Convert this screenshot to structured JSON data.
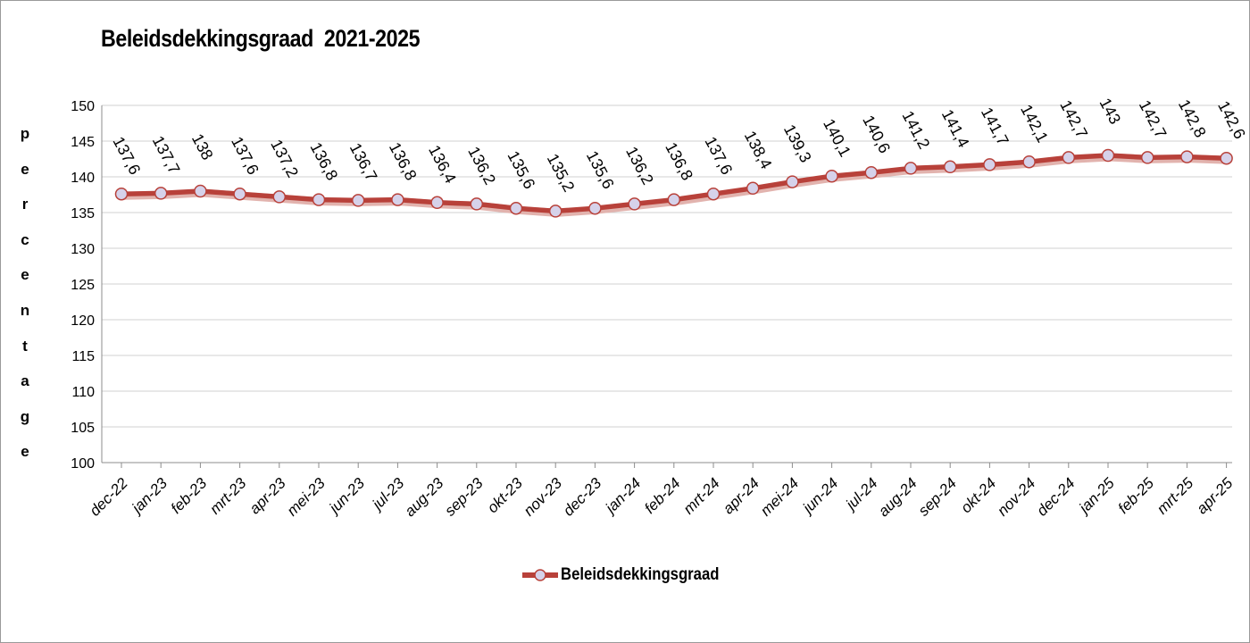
{
  "chart_data": {
    "type": "line",
    "title": "Beleidsdekkingsgraad  2021-2025",
    "ylabel": "percentage",
    "xlabel": "",
    "ylim": [
      100,
      150
    ],
    "yticks": [
      100,
      105,
      110,
      115,
      120,
      125,
      130,
      135,
      140,
      145,
      150
    ],
    "grid": true,
    "legend_position": "bottom",
    "categories": [
      "dec-22",
      "jan-23",
      "feb-23",
      "mrt-23",
      "apr-23",
      "mei-23",
      "jun-23",
      "jul-23",
      "aug-23",
      "sep-23",
      "okt-23",
      "nov-23",
      "dec-23",
      "jan-24",
      "feb-24",
      "mrt-24",
      "apr-24",
      "mei-24",
      "jun-24",
      "jul-24",
      "aug-24",
      "sep-24",
      "okt-24",
      "nov-24",
      "dec-24",
      "jan-25",
      "feb-25",
      "mrt-25",
      "apr-25"
    ],
    "series": [
      {
        "name": "Beleidsdekkingsgraad",
        "color": "#b8413a",
        "marker_color": "#d6d2ea",
        "values": [
          137.6,
          137.7,
          138,
          137.6,
          137.2,
          136.8,
          136.7,
          136.8,
          136.4,
          136.2,
          135.6,
          135.2,
          135.6,
          136.2,
          136.8,
          137.6,
          138.4,
          139.3,
          140.1,
          140.6,
          141.2,
          141.4,
          141.7,
          142.1,
          142.7,
          143,
          142.7,
          142.8,
          142.6
        ],
        "labels": [
          "137,6",
          "137,7",
          "138",
          "137,6",
          "137,2",
          "136,8",
          "136,7",
          "136,8",
          "136,4",
          "136,2",
          "135,6",
          "135,2",
          "135,6",
          "136,2",
          "136,8",
          "137,6",
          "138,4",
          "139,3",
          "140,1",
          "140,6",
          "141,2",
          "141,4",
          "141,7",
          "142,1",
          "142,7",
          "143",
          "142,7",
          "142,8",
          "142,6"
        ]
      }
    ]
  }
}
